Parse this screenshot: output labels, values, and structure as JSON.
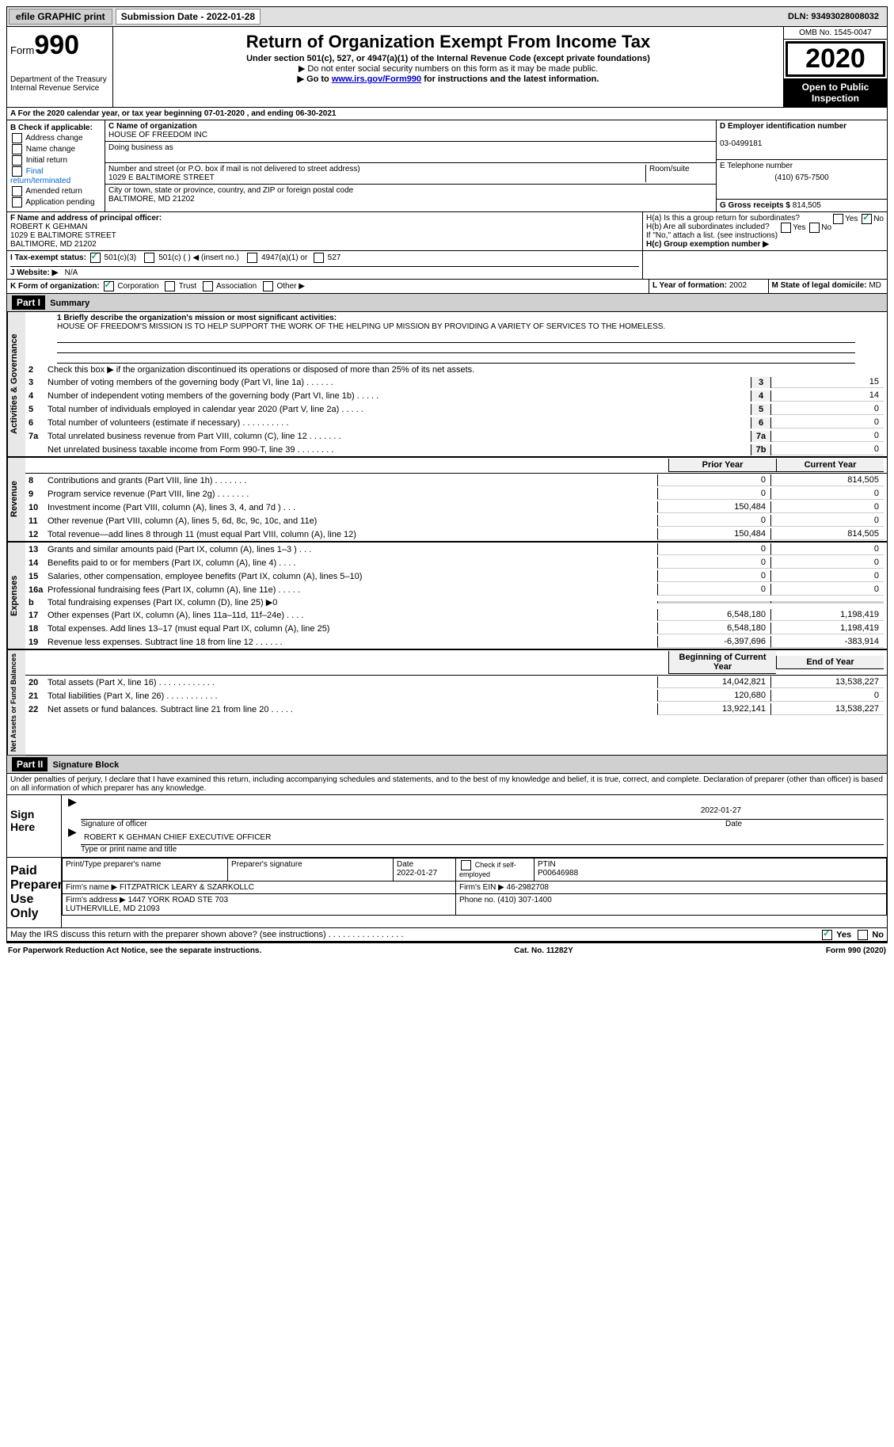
{
  "topbar": {
    "efile": "efile GRAPHIC print",
    "sub_label": "Submission Date - 2022-01-28",
    "dln": "DLN: 93493028008032"
  },
  "header": {
    "form_prefix": "Form",
    "form_num": "990",
    "dept": "Department of the Treasury\nInternal Revenue Service",
    "title": "Return of Organization Exempt From Income Tax",
    "subtitle": "Under section 501(c), 527, or 4947(a)(1) of the Internal Revenue Code (except private foundations)",
    "instr1": "▶ Do not enter social security numbers on this form as it may be made public.",
    "instr2_pre": "▶ Go to ",
    "instr2_link": "www.irs.gov/Form990",
    "instr2_post": " for instructions and the latest information.",
    "omb": "OMB No. 1545-0047",
    "year": "2020",
    "open_public": "Open to Public Inspection"
  },
  "period": "A For the 2020 calendar year, or tax year beginning 07-01-2020    , and ending 06-30-2021",
  "boxB": {
    "label": "B Check if applicable:",
    "items": [
      "Address change",
      "Name change",
      "Initial return",
      "Final return/terminated",
      "Amended return",
      "Application pending"
    ]
  },
  "boxC": {
    "name_label": "C Name of organization",
    "name": "HOUSE OF FREEDOM INC",
    "dba_label": "Doing business as",
    "addr_label": "Number and street (or P.O. box if mail is not delivered to street address)",
    "room_label": "Room/suite",
    "addr": "1029 E BALTIMORE STREET",
    "city_label": "City or town, state or province, country, and ZIP or foreign postal code",
    "city": "BALTIMORE, MD  21202"
  },
  "boxD": {
    "label": "D Employer identification number",
    "value": "03-0499181"
  },
  "boxE": {
    "label": "E Telephone number",
    "value": "(410) 675-7500"
  },
  "boxG": {
    "label": "G Gross receipts $",
    "value": "814,505"
  },
  "boxF": {
    "label": "F Name and address of principal officer:",
    "name": "ROBERT K GEHMAN",
    "addr1": "1029 E BALTIMORE STREET",
    "addr2": "BALTIMORE, MD  21202"
  },
  "boxH": {
    "a": "H(a)  Is this a group return for subordinates?",
    "b": "H(b)  Are all subordinates included?",
    "note": "If \"No,\" attach a list. (see instructions)",
    "c": "H(c)  Group exemption number ▶"
  },
  "boxI": {
    "label": "I  Tax-exempt status:",
    "opts": [
      "501(c)(3)",
      "501(c) (  ) ◀ (insert no.)",
      "4947(a)(1) or",
      "527"
    ]
  },
  "boxJ": {
    "label": "J  Website: ▶",
    "value": "N/A"
  },
  "boxK": {
    "label": "K Form of organization:",
    "opts": [
      "Corporation",
      "Trust",
      "Association",
      "Other ▶"
    ]
  },
  "boxL": {
    "label": "L Year of formation:",
    "value": "2002"
  },
  "boxM": {
    "label": "M State of legal domicile:",
    "value": "MD"
  },
  "part1": {
    "hdr": "Part I",
    "title": "Summary",
    "line1_label": "1  Briefly describe the organization's mission or most significant activities:",
    "mission": "HOUSE OF FREEDOM'S MISSION IS TO HELP SUPPORT THE WORK OF THE HELPING UP MISSION BY PROVIDING A VARIETY OF SERVICES TO THE HOMELESS.",
    "line2": "Check this box ▶     if the organization discontinued its operations or disposed of more than 25% of its net assets.",
    "col_prior": "Prior Year",
    "col_current": "Current Year",
    "col_begin": "Beginning of Current Year",
    "col_end": "End of Year",
    "lines_gov": [
      {
        "n": "3",
        "t": "Number of voting members of the governing body (Part VI, line 1a)  .    .    .    .    .    .",
        "box": "3",
        "v": "15"
      },
      {
        "n": "4",
        "t": "Number of independent voting members of the governing body (Part VI, line 1b)  .    .    .    .    .",
        "box": "4",
        "v": "14"
      },
      {
        "n": "5",
        "t": "Total number of individuals employed in calendar year 2020 (Part V, line 2a)  .    .    .    .    .",
        "box": "5",
        "v": "0"
      },
      {
        "n": "6",
        "t": "Total number of volunteers (estimate if necessary)  .    .    .    .    .    .    .    .    .    .",
        "box": "6",
        "v": "0"
      },
      {
        "n": "7a",
        "t": "Total unrelated business revenue from Part VIII, column (C), line 12  .    .    .    .    .    .    .",
        "box": "7a",
        "v": "0"
      },
      {
        "n": "",
        "t": "Net unrelated business taxable income from Form 990-T, line 39  .    .    .    .    .    .    .    .",
        "box": "7b",
        "v": "0"
      }
    ],
    "lines_rev": [
      {
        "n": "8",
        "t": "Contributions and grants (Part VIII, line 1h)  .    .    .    .    .    .    .",
        "p": "0",
        "c": "814,505"
      },
      {
        "n": "9",
        "t": "Program service revenue (Part VIII, line 2g)  .    .    .    .    .    .    .",
        "p": "0",
        "c": "0"
      },
      {
        "n": "10",
        "t": "Investment income (Part VIII, column (A), lines 3, 4, and 7d )  .    .    .",
        "p": "150,484",
        "c": "0"
      },
      {
        "n": "11",
        "t": "Other revenue (Part VIII, column (A), lines 5, 6d, 8c, 9c, 10c, and 11e)",
        "p": "0",
        "c": "0"
      },
      {
        "n": "12",
        "t": "Total revenue—add lines 8 through 11 (must equal Part VIII, column (A), line 12)",
        "p": "150,484",
        "c": "814,505"
      }
    ],
    "lines_exp": [
      {
        "n": "13",
        "t": "Grants and similar amounts paid (Part IX, column (A), lines 1–3 )  .    .    .",
        "p": "0",
        "c": "0"
      },
      {
        "n": "14",
        "t": "Benefits paid to or for members (Part IX, column (A), line 4)  .    .    .    .",
        "p": "0",
        "c": "0"
      },
      {
        "n": "15",
        "t": "Salaries, other compensation, employee benefits (Part IX, column (A), lines 5–10)",
        "p": "0",
        "c": "0"
      },
      {
        "n": "16a",
        "t": "Professional fundraising fees (Part IX, column (A), line 11e)  .    .    .    .    .",
        "p": "0",
        "c": "0"
      },
      {
        "n": "b",
        "t": "Total fundraising expenses (Part IX, column (D), line 25) ▶0",
        "p": "",
        "c": "",
        "gray": true
      },
      {
        "n": "17",
        "t": "Other expenses (Part IX, column (A), lines 11a–11d, 11f–24e)  .    .    .    .",
        "p": "6,548,180",
        "c": "1,198,419"
      },
      {
        "n": "18",
        "t": "Total expenses. Add lines 13–17 (must equal Part IX, column (A), line 25)",
        "p": "6,548,180",
        "c": "1,198,419"
      },
      {
        "n": "19",
        "t": "Revenue less expenses. Subtract line 18 from line 12  .    .    .    .    .    .",
        "p": "-6,397,696",
        "c": "-383,914"
      }
    ],
    "lines_net": [
      {
        "n": "20",
        "t": "Total assets (Part X, line 16)  .    .    .    .    .    .    .    .    .    .    .    .",
        "p": "14,042,821",
        "c": "13,538,227"
      },
      {
        "n": "21",
        "t": "Total liabilities (Part X, line 26)  .    .    .    .    .    .    .    .    .    .    .",
        "p": "120,680",
        "c": "0"
      },
      {
        "n": "22",
        "t": "Net assets or fund balances. Subtract line 21 from line 20  .    .    .    .    .",
        "p": "13,922,141",
        "c": "13,538,227"
      }
    ],
    "side_gov": "Activities & Governance",
    "side_rev": "Revenue",
    "side_exp": "Expenses",
    "side_net": "Net Assets or Fund Balances"
  },
  "part2": {
    "hdr": "Part II",
    "title": "Signature Block",
    "decl": "Under penalties of perjury, I declare that I have examined this return, including accompanying schedules and statements, and to the best of my knowledge and belief, it is true, correct, and complete. Declaration of preparer (other than officer) is based on all information of which preparer has any knowledge.",
    "sign_here": "Sign Here",
    "sig_officer": "Signature of officer",
    "sig_date": "Date",
    "sig_date_val": "2022-01-27",
    "officer_name": "ROBERT K GEHMAN  CHIEF EXECUTIVE OFFICER",
    "type_name": "Type or print name and title",
    "paid_prep": "Paid Preparer Use Only",
    "prep_name_label": "Print/Type preparer's name",
    "prep_sig_label": "Preparer's signature",
    "prep_date_label": "Date",
    "prep_date": "2022-01-27",
    "self_emp": "Check     if self-employed",
    "ptin_label": "PTIN",
    "ptin": "P00646988",
    "firm_name_label": "Firm's name    ▶",
    "firm_name": "FITZPATRICK LEARY & SZARKOLLC",
    "firm_ein_label": "Firm's EIN ▶",
    "firm_ein": "46-2982708",
    "firm_addr_label": "Firm's address ▶",
    "firm_addr": "1447 YORK ROAD STE 703\nLUTHERVILLE, MD  21093",
    "phone_label": "Phone no.",
    "phone": "(410) 307-1400",
    "discuss": "May the IRS discuss this return with the preparer shown above? (see instructions)  .    .    .    .    .    .    .    .    .    .    .    .    .    .    .    ."
  },
  "footer": {
    "pra": "For Paperwork Reduction Act Notice, see the separate instructions.",
    "cat": "Cat. No. 11282Y",
    "form": "Form 990 (2020)"
  },
  "yes": "Yes",
  "no": "No"
}
